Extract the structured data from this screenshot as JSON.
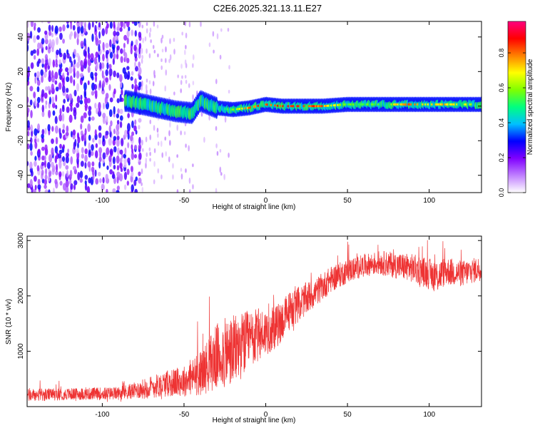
{
  "title": "C2E6.2025.321.13.11.E27",
  "chart_data": [
    {
      "type": "heatmap",
      "title": "C2E6.2025.321.13.11.E27",
      "xlabel": "Height of straight line (km)",
      "ylabel": "Frequency (Hz)",
      "xlim": [
        -146,
        132
      ],
      "ylim": [
        -50,
        49
      ],
      "xticks": [
        -100,
        -50,
        0,
        50,
        100
      ],
      "yticks": [
        -40,
        -20,
        0,
        20,
        40
      ],
      "colorbar": {
        "label": "Normalized spectral amplitude",
        "range": [
          0,
          0.98
        ],
        "ticks": [
          "0.0",
          "0.2",
          "0.4",
          "0.6",
          "0.8"
        ],
        "tick_values": [
          0,
          0.2,
          0.4,
          0.6,
          0.8
        ],
        "colors": [
          "#ffffff",
          "#c080ff",
          "#8000ff",
          "#0000ff",
          "#00c0ff",
          "#00ff80",
          "#80ff00",
          "#ffff00",
          "#ff8000",
          "#ff0000",
          "#ff0080"
        ]
      },
      "ridge": {
        "description": "Dominant signal band near 0 Hz",
        "x": [
          -85,
          -75,
          -65,
          -55,
          -45,
          -40,
          -30,
          -20,
          -10,
          0,
          10,
          20,
          35,
          50,
          70,
          90,
          100,
          110,
          132
        ],
        "freq_hz": [
          3,
          1,
          -1,
          -3,
          -4,
          3,
          -1,
          -2,
          -1,
          1,
          0,
          0,
          0,
          1,
          1,
          1,
          1,
          1,
          1
        ],
        "peak_amplitude": [
          0.3,
          0.35,
          0.4,
          0.4,
          0.5,
          0.45,
          0.5,
          0.6,
          0.85,
          0.9,
          0.9,
          0.95,
          0.85,
          0.6,
          0.6,
          0.9,
          0.7,
          0.8,
          0.6
        ]
      },
      "noise_region": {
        "x_range": [
          -146,
          -76
        ],
        "freq_range": [
          -50,
          49
        ],
        "amplitude": 0.15
      }
    },
    {
      "type": "line",
      "xlabel": "Height of straight line (km)",
      "ylabel": "SNR (10 * v/v)",
      "xlim": [
        -146,
        132
      ],
      "ylim": [
        0,
        3080
      ],
      "xticks": [
        -100,
        -50,
        0,
        50,
        100
      ],
      "yticks": [
        1000,
        2000,
        3000
      ],
      "line_color": "#ee3333",
      "series": [
        {
          "name": "SNR",
          "x": [
            -146,
            -130,
            -110,
            -90,
            -80,
            -72,
            -60,
            -50,
            -40,
            -30,
            -25,
            -20,
            -15,
            -10,
            -5,
            0,
            5,
            10,
            15,
            20,
            25,
            30,
            40,
            50,
            60,
            70,
            80,
            90,
            100,
            105,
            110,
            120,
            132
          ],
          "mean": [
            200,
            220,
            230,
            240,
            290,
            340,
            420,
            460,
            600,
            900,
            950,
            1000,
            1100,
            1200,
            1280,
            1350,
            1400,
            1550,
            1750,
            1850,
            1950,
            2050,
            2300,
            2450,
            2550,
            2600,
            2550,
            2500,
            2400,
            2350,
            2450,
            2400,
            2500
          ],
          "noise_amplitude": [
            120,
            110,
            110,
            120,
            150,
            200,
            240,
            280,
            400,
            600,
            650,
            650,
            600,
            550,
            500,
            420,
            400,
            380,
            360,
            320,
            300,
            260,
            240,
            220,
            200,
            220,
            240,
            260,
            280,
            300,
            260,
            240,
            220
          ]
        }
      ]
    }
  ]
}
